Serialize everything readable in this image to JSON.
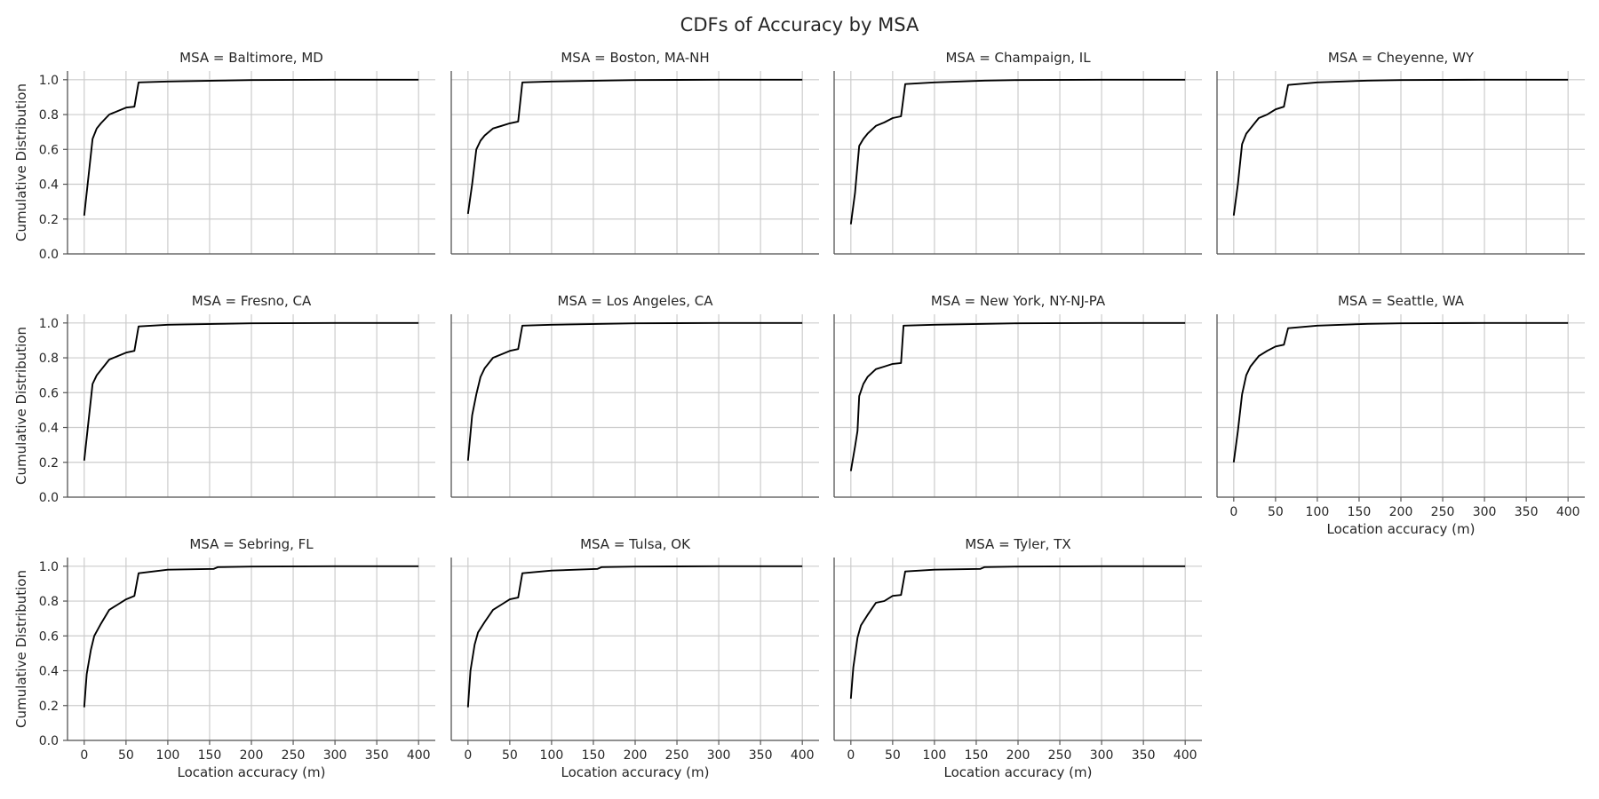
{
  "title": "CDFs of Accuracy by MSA",
  "colors": {
    "line": "#000000",
    "grid": "#cccccc",
    "background": "#ffffff"
  },
  "chart_data": {
    "type": "line",
    "title": "CDFs of Accuracy by MSA",
    "xlabel": "Location accuracy (m)",
    "ylabel": "Cumulative Distribution",
    "xlim": [
      -20,
      420
    ],
    "ylim": [
      0,
      1.05
    ],
    "xticks": [
      0,
      50,
      100,
      150,
      200,
      250,
      300,
      350,
      400
    ],
    "yticks": [
      0.0,
      0.2,
      0.4,
      0.6,
      0.8,
      1.0
    ],
    "grid": true,
    "panels": [
      {
        "title": "MSA = Baltimore, MD",
        "x": [
          0,
          5,
          10,
          15,
          20,
          30,
          40,
          50,
          60,
          65,
          100,
          160,
          200,
          300,
          400
        ],
        "y": [
          0.22,
          0.44,
          0.66,
          0.72,
          0.75,
          0.8,
          0.82,
          0.84,
          0.845,
          0.985,
          0.99,
          0.995,
          0.998,
          1.0,
          1.0
        ]
      },
      {
        "title": "MSA = Boston, MA-NH",
        "x": [
          0,
          5,
          10,
          15,
          20,
          30,
          40,
          50,
          60,
          65,
          100,
          160,
          200,
          300,
          400
        ],
        "y": [
          0.23,
          0.4,
          0.6,
          0.65,
          0.68,
          0.72,
          0.735,
          0.75,
          0.76,
          0.985,
          0.99,
          0.995,
          0.998,
          1.0,
          1.0
        ]
      },
      {
        "title": "MSA = Champaign, IL",
        "x": [
          0,
          5,
          10,
          15,
          20,
          30,
          40,
          50,
          60,
          65,
          100,
          160,
          200,
          300,
          400
        ],
        "y": [
          0.17,
          0.35,
          0.62,
          0.66,
          0.69,
          0.735,
          0.755,
          0.78,
          0.79,
          0.975,
          0.985,
          0.995,
          0.998,
          1.0,
          1.0
        ]
      },
      {
        "title": "MSA = Cheyenne, WY",
        "x": [
          0,
          5,
          10,
          15,
          20,
          30,
          40,
          50,
          60,
          65,
          100,
          160,
          200,
          300,
          400
        ],
        "y": [
          0.22,
          0.4,
          0.63,
          0.69,
          0.72,
          0.78,
          0.8,
          0.83,
          0.845,
          0.97,
          0.985,
          0.995,
          0.998,
          1.0,
          1.0
        ]
      },
      {
        "title": "MSA = Fresno, CA",
        "x": [
          0,
          5,
          10,
          15,
          20,
          30,
          40,
          50,
          60,
          65,
          100,
          160,
          200,
          300,
          400
        ],
        "y": [
          0.21,
          0.43,
          0.65,
          0.7,
          0.73,
          0.79,
          0.81,
          0.83,
          0.84,
          0.98,
          0.99,
          0.995,
          0.998,
          1.0,
          1.0
        ]
      },
      {
        "title": "MSA = Los Angeles, CA",
        "x": [
          0,
          5,
          10,
          15,
          20,
          30,
          40,
          50,
          60,
          65,
          100,
          160,
          200,
          300,
          400
        ],
        "y": [
          0.21,
          0.47,
          0.59,
          0.69,
          0.74,
          0.8,
          0.82,
          0.84,
          0.85,
          0.985,
          0.99,
          0.995,
          0.998,
          1.0,
          1.0
        ]
      },
      {
        "title": "MSA = New York, NY-NJ-PA",
        "x": [
          0,
          5,
          8,
          10,
          15,
          20,
          30,
          40,
          50,
          60,
          63,
          100,
          160,
          200,
          300,
          400
        ],
        "y": [
          0.15,
          0.29,
          0.38,
          0.58,
          0.65,
          0.69,
          0.735,
          0.75,
          0.765,
          0.77,
          0.985,
          0.99,
          0.995,
          0.998,
          1.0,
          1.0
        ]
      },
      {
        "title": "MSA = Seattle, WA",
        "x": [
          0,
          5,
          10,
          15,
          20,
          30,
          40,
          50,
          60,
          65,
          100,
          160,
          200,
          300,
          400
        ],
        "y": [
          0.2,
          0.38,
          0.59,
          0.7,
          0.75,
          0.81,
          0.84,
          0.865,
          0.875,
          0.97,
          0.985,
          0.995,
          0.998,
          1.0,
          1.0
        ]
      },
      {
        "title": "MSA = Sebring, FL",
        "x": [
          0,
          3,
          8,
          12,
          20,
          30,
          40,
          50,
          60,
          65,
          100,
          155,
          160,
          200,
          300,
          400
        ],
        "y": [
          0.19,
          0.38,
          0.52,
          0.6,
          0.67,
          0.75,
          0.78,
          0.81,
          0.83,
          0.96,
          0.98,
          0.985,
          0.995,
          0.998,
          1.0,
          1.0
        ]
      },
      {
        "title": "MSA = Tulsa, OK",
        "x": [
          0,
          3,
          8,
          12,
          20,
          30,
          40,
          50,
          60,
          65,
          100,
          155,
          160,
          200,
          300,
          400
        ],
        "y": [
          0.19,
          0.4,
          0.55,
          0.62,
          0.68,
          0.75,
          0.78,
          0.81,
          0.82,
          0.96,
          0.975,
          0.985,
          0.995,
          0.998,
          1.0,
          1.0
        ]
      },
      {
        "title": "MSA = Tyler, TX",
        "x": [
          0,
          3,
          8,
          12,
          20,
          30,
          40,
          50,
          60,
          65,
          100,
          155,
          160,
          200,
          300,
          400
        ],
        "y": [
          0.24,
          0.42,
          0.59,
          0.66,
          0.72,
          0.79,
          0.8,
          0.83,
          0.835,
          0.97,
          0.98,
          0.985,
          0.995,
          0.998,
          1.0,
          1.0
        ]
      }
    ]
  }
}
